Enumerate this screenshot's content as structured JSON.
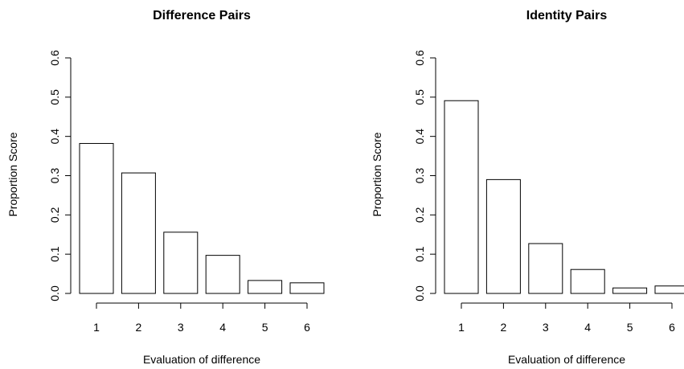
{
  "chart_data": [
    {
      "type": "bar",
      "title": "Difference Pairs",
      "xlabel": "Evaluation of difference",
      "ylabel": "Proportion Score",
      "categories": [
        "1",
        "2",
        "3",
        "4",
        "5",
        "6"
      ],
      "values": [
        0.382,
        0.307,
        0.156,
        0.097,
        0.033,
        0.027
      ],
      "ylim": [
        0,
        0.6
      ],
      "yticks": [
        "0.0",
        "0.1",
        "0.2",
        "0.3",
        "0.4",
        "0.5",
        "0.6"
      ],
      "grid": false,
      "bar_color": "#ffffff",
      "edge_color": "#000000"
    },
    {
      "type": "bar",
      "title": "Identity Pairs",
      "xlabel": "Evaluation of difference",
      "ylabel": "Proportion Score",
      "categories": [
        "1",
        "2",
        "3",
        "4",
        "5",
        "6"
      ],
      "values": [
        0.491,
        0.29,
        0.127,
        0.061,
        0.014,
        0.019
      ],
      "ylim": [
        0,
        0.6
      ],
      "yticks": [
        "0.0",
        "0.1",
        "0.2",
        "0.3",
        "0.4",
        "0.5",
        "0.6"
      ],
      "grid": false,
      "bar_color": "#ffffff",
      "edge_color": "#000000"
    }
  ]
}
